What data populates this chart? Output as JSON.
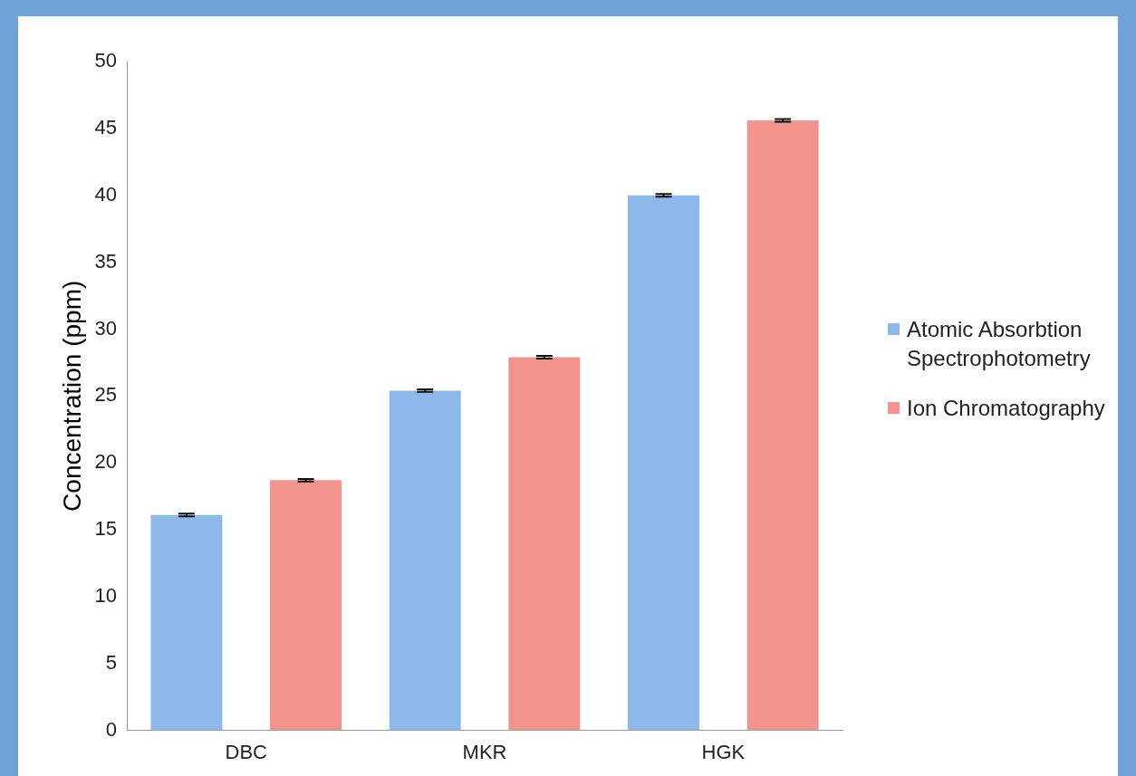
{
  "chart_data": {
    "type": "bar",
    "ylabel": "Concentration (ppm)",
    "categories": [
      "DBC",
      "MKR",
      "HGK"
    ],
    "series": [
      {
        "name": "Atomic Absorbtion Spectrophotometry",
        "color": "#8db9ea",
        "values": [
          16.1,
          25.4,
          40.0
        ],
        "errors": [
          0.1,
          0.1,
          0.1
        ]
      },
      {
        "name": "Ion Chromatography",
        "color": "#f2938c",
        "values": [
          18.7,
          27.9,
          45.6
        ],
        "errors": [
          0.1,
          0.1,
          0.1
        ]
      }
    ],
    "ylim": [
      0,
      50
    ],
    "yticks": [
      0,
      5,
      10,
      15,
      20,
      25,
      30,
      35,
      40,
      45,
      50
    ],
    "grid": false,
    "legend": "right"
  }
}
